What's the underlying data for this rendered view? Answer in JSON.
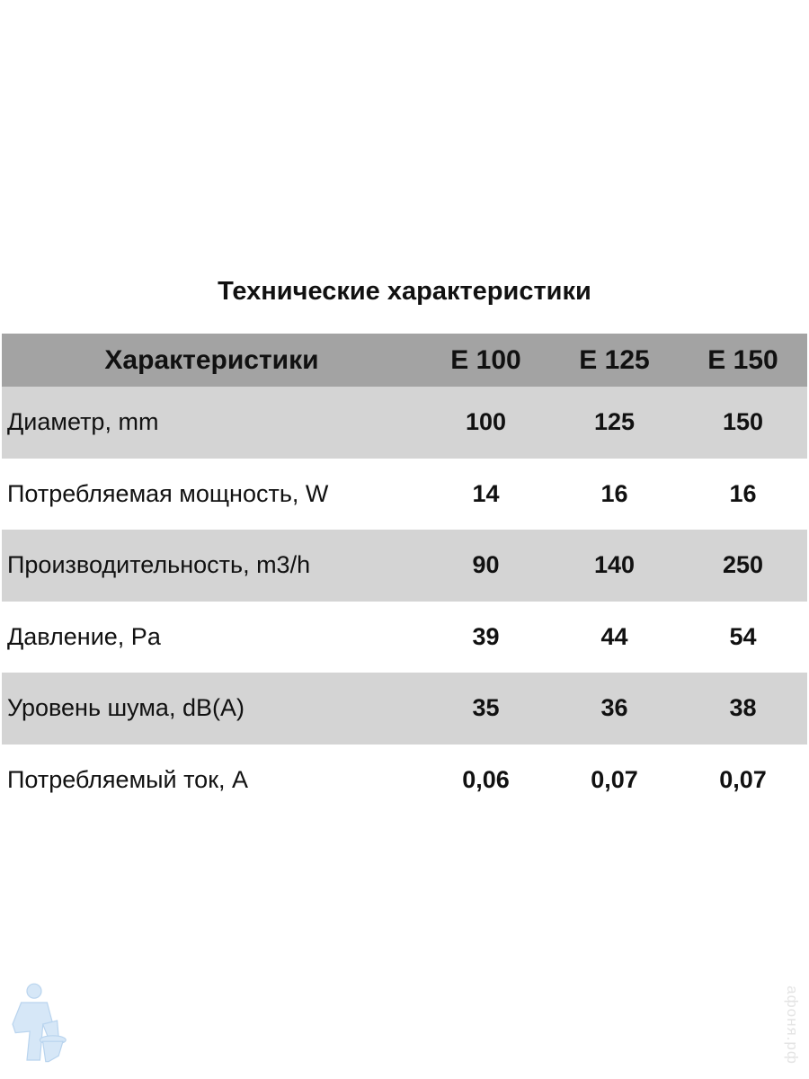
{
  "title": "Технические характеристики",
  "table": {
    "headers": [
      "Характеристики",
      "E 100",
      "E 125",
      "E 150"
    ],
    "rows": [
      {
        "label": "Диаметр, mm",
        "values": [
          "100",
          "125",
          "150"
        ]
      },
      {
        "label": "Потребляемая мощность, W",
        "values": [
          "14",
          "16",
          "16"
        ]
      },
      {
        "label": "Производительность, m3/h",
        "values": [
          "90",
          "140",
          "250"
        ]
      },
      {
        "label": "Давление, Pa",
        "values": [
          "39",
          "44",
          "54"
        ]
      },
      {
        "label": "Уровень шума, dB(A)",
        "values": [
          "35",
          "36",
          "38"
        ]
      },
      {
        "label": "Потребляемый ток, A",
        "values": [
          "0,06",
          "0,07",
          "0,07"
        ]
      }
    ]
  },
  "watermark": "афоня.рф",
  "colors": {
    "header_bg": "#a3a3a3",
    "row_alt_bg": "#d4d4d4",
    "mascot": "#cfe3f5"
  }
}
